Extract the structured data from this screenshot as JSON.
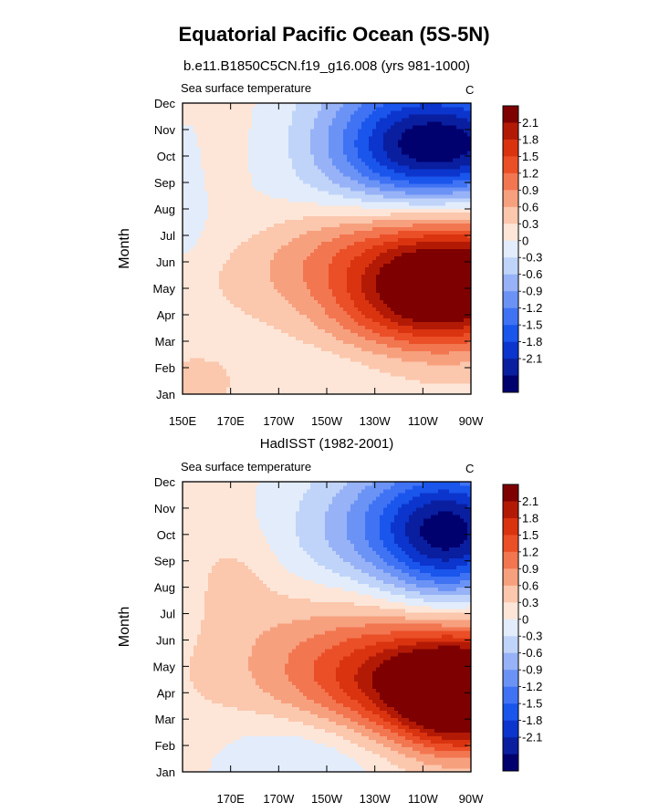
{
  "figure": {
    "title": "Equatorial Pacific Ocean (5S-5N)"
  },
  "chart_data": [
    {
      "type": "heatmap",
      "title": "b.e11.B1850C5CN.f19_g16.008 (yrs 981-1000)",
      "left_label": "Sea surface temperature",
      "right_label": "C",
      "ylabel": "Month",
      "x_tick_labels": [
        "150E",
        "170E",
        "170W",
        "150W",
        "130W",
        "110W",
        "90W"
      ],
      "y_tick_labels": [
        "Jan",
        "Feb",
        "Mar",
        "Apr",
        "May",
        "Jun",
        "Jul",
        "Aug",
        "Sep",
        "Oct",
        "Nov",
        "Dec"
      ],
      "colorbar_labels": [
        "2.1",
        "1.8",
        "1.5",
        "1.2",
        "0.9",
        "0.6",
        "0.3",
        "0",
        "-0.3",
        "-0.6",
        "-0.9",
        "-1.2",
        "-1.5",
        "-1.8",
        "-2.1"
      ],
      "field": "sim"
    },
    {
      "type": "heatmap",
      "title": "HadISST (1982-2001)",
      "left_label": "Sea surface temperature",
      "right_label": "C",
      "ylabel": "Month",
      "x_tick_labels": [
        "",
        "170E",
        "170W",
        "150W",
        "130W",
        "110W",
        "90W"
      ],
      "y_tick_labels": [
        "Jan",
        "Feb",
        "Mar",
        "Apr",
        "May",
        "Jun",
        "Jul",
        "Aug",
        "Sep",
        "Oct",
        "Nov",
        "Dec"
      ],
      "colorbar_labels": [
        "2.1",
        "1.8",
        "1.5",
        "1.2",
        "0.9",
        "0.6",
        "0.3",
        "0",
        "-0.3",
        "-0.6",
        "-0.9",
        "-1.2",
        "-1.5",
        "-1.8",
        "-2.1"
      ],
      "field": "obs"
    }
  ],
  "colors": {
    "palette": [
      "#00006e",
      "#0a1ea0",
      "#0b35cc",
      "#1a55ec",
      "#3f73f4",
      "#6b93f6",
      "#97b2f6",
      "#c0d4f9",
      "#e2ecfb",
      "#fde6d8",
      "#fbc7ad",
      "#f7a07e",
      "#f27650",
      "#eb4f28",
      "#d93310",
      "#b31a06",
      "#7e0000"
    ]
  }
}
